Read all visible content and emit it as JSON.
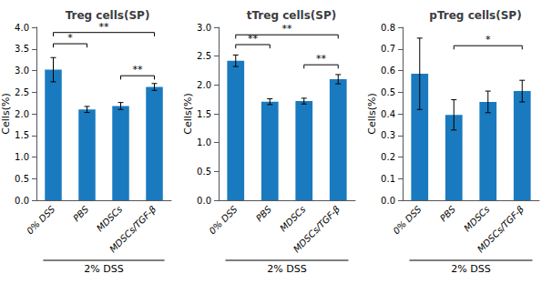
{
  "chart_data": [
    {
      "type": "bar",
      "title": "Treg cells(SP)",
      "ylabel": "Cells(%)",
      "categories": [
        "0% DSS",
        "PBS",
        "MDSCs",
        "MDSCs/TGF-β"
      ],
      "values": [
        3.02,
        2.1,
        2.18,
        2.62
      ],
      "errors": [
        0.28,
        0.07,
        0.08,
        0.08
      ],
      "color": "#1a7abf",
      "ylim": [
        0,
        4
      ],
      "yticks": [
        {
          "value": 0,
          "label": "0.0"
        },
        0.5,
        {
          "value": 1.0,
          "label": "1.0"
        },
        1.5,
        {
          "value": 2.0,
          "label": "2.0"
        },
        2.5,
        {
          "value": 3.0,
          "label": "3.0"
        },
        3.5,
        {
          "value": 4.0,
          "label": "4.0"
        }
      ],
      "grid": false,
      "annotations": [
        {
          "text": "*",
          "from": "0% DSS",
          "to": "PBS",
          "y": 3.62
        },
        {
          "text": "**",
          "from": "0% DSS",
          "to": "MDSCs/TGF-β",
          "y": 3.88
        },
        {
          "text": "**",
          "from": "MDSCs",
          "to": "MDSCs/TGF-β",
          "y": 2.88
        },
        {
          "text": "2% DSS",
          "from": "0% DSS",
          "to": "MDSCs/TGF-β"
        }
      ]
    },
    {
      "type": "bar",
      "title": "tTreg cells(SP)",
      "ylabel": "Cells(%)",
      "categories": [
        "0% DSS",
        "PBS",
        "MDSCs",
        "MDSCs/TGF-β"
      ],
      "values": [
        2.42,
        1.71,
        1.72,
        2.1
      ],
      "errors": [
        0.1,
        0.05,
        0.05,
        0.08
      ],
      "color": "#1a7abf",
      "ylim": [
        0,
        3
      ],
      "yticks": [
        {
          "value": 0,
          "label": "0.0"
        },
        0.5,
        {
          "value": 1.0,
          "label": "1.0"
        },
        1.5,
        {
          "value": 2.0,
          "label": "2.0"
        },
        2.5,
        {
          "value": 3.0,
          "label": "3.0"
        }
      ],
      "grid": false,
      "annotations": [
        {
          "text": "**",
          "from": "0% DSS",
          "to": "PBS",
          "y": 2.7
        },
        {
          "text": "**",
          "from": "0% DSS",
          "to": "MDSCs/TGF-β",
          "y": 2.87
        },
        {
          "text": "**",
          "from": "MDSCs",
          "to": "MDSCs/TGF-β",
          "y": 2.35
        },
        {
          "text": "2% DSS",
          "from": "0% DSS",
          "to": "MDSCs/TGF-β"
        }
      ]
    },
    {
      "type": "bar",
      "title": "pTreg cells(SP)",
      "ylabel": "Cells(%)",
      "categories": [
        "0% DSS",
        "PBS",
        "MDSCs",
        "MDSCs/TGF-β"
      ],
      "values": [
        0.585,
        0.395,
        0.455,
        0.505
      ],
      "errors": [
        0.165,
        0.07,
        0.05,
        0.05
      ],
      "color": "#1a7abf",
      "ylim": [
        0,
        0.8
      ],
      "yticks": [
        {
          "value": 0,
          "label": "0.0"
        },
        0.1,
        0.2,
        0.3,
        0.4,
        0.5,
        0.6,
        0.7,
        0.8
      ],
      "grid": false,
      "annotations": [
        {
          "text": "*",
          "from": "PBS",
          "to": "MDSCs/TGF-β",
          "y": 0.715
        },
        {
          "text": "2% DSS",
          "from": "0% DSS",
          "to": "MDSCs/TGF-β"
        }
      ]
    }
  ]
}
